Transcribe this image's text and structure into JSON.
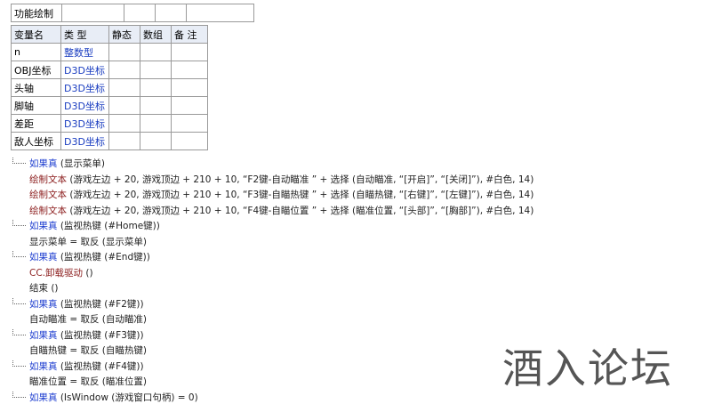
{
  "top_table": {
    "rows": [
      [
        "功能绘制",
        "",
        "",
        "",
        ""
      ]
    ]
  },
  "var_table": {
    "header": [
      "变量名",
      "类 型",
      "静态",
      "数组",
      "备 注"
    ],
    "rows": [
      [
        "n",
        "整数型"
      ],
      [
        "OBJ坐标",
        "D3D坐标"
      ],
      [
        "头轴",
        "D3D坐标"
      ],
      [
        "脚轴",
        "D3D坐标"
      ],
      [
        "差距",
        "D3D坐标"
      ],
      [
        "敌人坐标",
        "D3D坐标"
      ]
    ]
  },
  "code": [
    {
      "kw": "如果真",
      "rest": " (显示菜单)"
    },
    {
      "cmd": "绘制文本",
      "rest": " (游戏左边 + 20, 游戏顶边 + 210 + 10, “F2键-自动瞄准  ” + 选择 (自动瞄准, “[开启]”, “[关闭]”), #白色, 14)"
    },
    {
      "cmd": "绘制文本",
      "rest": " (游戏左边 + 20, 游戏顶边 + 210 + 10, “F3键-自瞄热键  ” + 选择 (自瞄热键, “[右键]”, “[左键]”), #白色, 14)"
    },
    {
      "cmd": "绘制文本",
      "rest": " (游戏左边 + 20, 游戏顶边 + 210 + 10, “F4键-自瞄位置  ” + 选择 (瞄准位置, “[头部]”, “[胸部]”), #白色, 14)"
    },
    {
      "kw": "如果真",
      "rest": " (监视热键 (#Home键))"
    },
    {
      "text": "显示菜单 = 取反 (显示菜单)"
    },
    {
      "kw": "如果真",
      "rest": " (监视热键 (#End键))"
    },
    {
      "cmd": "CC.卸载驱动",
      "rest": " ()"
    },
    {
      "text": "结束 ()"
    },
    {
      "kw": "如果真",
      "rest": " (监视热键 (#F2键))"
    },
    {
      "text": "自动瞄准 = 取反 (自动瞄准)"
    },
    {
      "kw": "如果真",
      "rest": " (监视热键 (#F3键))"
    },
    {
      "text": "自瞄热键 = 取反 (自瞄热键)"
    },
    {
      "kw": "如果真",
      "rest": " (监视热键 (#F4键))"
    },
    {
      "text": "瞄准位置 = 取反 (瞄准位置)"
    },
    {
      "kw": "如果真",
      "rest": " (IsWindow (游戏窗口句柄) = 0)"
    }
  ],
  "watermark": "酒入论坛"
}
